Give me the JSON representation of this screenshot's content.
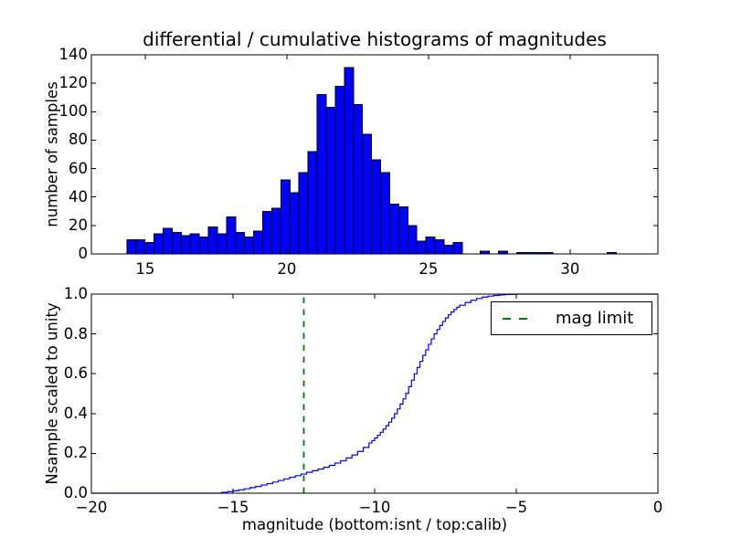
{
  "figure": {
    "background": "#ffffff",
    "text_color": "#000000"
  },
  "chart_data": [
    {
      "id": "top",
      "type": "bar",
      "title": "differential / cumulative histograms of magnitudes",
      "xlabel": "",
      "ylabel": "number of samples",
      "xlim": [
        13.1,
        33.1
      ],
      "ylim": [
        0,
        140
      ],
      "grid": false,
      "xtick_values": [
        15,
        20,
        25,
        30
      ],
      "xtick_labels": [
        "15",
        "20",
        "25",
        "30"
      ],
      "ytick_values": [
        0,
        20,
        40,
        60,
        80,
        100,
        120,
        140
      ],
      "ytick_labels": [
        "0",
        "20",
        "40",
        "60",
        "80",
        "100",
        "120",
        "140"
      ],
      "bar_color": "#0000ff",
      "bar_edge_color": "#000000",
      "bins": {
        "start": 14.35,
        "width": 0.32
      },
      "values": [
        10,
        10,
        8,
        14,
        18,
        15,
        13,
        14,
        12,
        19,
        14,
        26,
        15,
        12,
        16,
        30,
        32,
        52,
        43,
        57,
        72,
        112,
        103,
        118,
        131,
        105,
        84,
        66,
        57,
        35,
        33,
        20,
        9,
        12,
        10,
        6,
        8,
        0,
        0,
        2,
        0,
        2,
        0,
        1,
        1,
        1,
        1,
        0,
        0,
        0,
        0,
        0,
        0,
        1,
        0
      ]
    },
    {
      "id": "bottom",
      "type": "line",
      "line_style": "step",
      "title": "",
      "xlabel": "magnitude (bottom:isnt / top:calib)",
      "ylabel": "Nsample scaled to unity",
      "xlim": [
        -20,
        0
      ],
      "ylim": [
        0.0,
        1.0
      ],
      "grid": false,
      "xtick_values": [
        -20,
        -15,
        -10,
        -5,
        0
      ],
      "xtick_labels": [
        "−20",
        "−15",
        "−10",
        "−5",
        "0"
      ],
      "ytick_values": [
        0.0,
        0.2,
        0.4,
        0.6,
        0.8,
        1.0
      ],
      "ytick_labels": [
        "0.0",
        "0.2",
        "0.4",
        "0.6",
        "0.8",
        "1.0"
      ],
      "line_color": "#0000ff",
      "steps": {
        "x": [
          -15.4,
          -15.2,
          -15.0,
          -14.8,
          -14.6,
          -14.4,
          -14.2,
          -14.0,
          -13.8,
          -13.6,
          -13.4,
          -13.2,
          -13.0,
          -12.8,
          -12.6,
          -12.4,
          -12.2,
          -12.0,
          -11.8,
          -11.6,
          -11.4,
          -11.2,
          -11.0,
          -10.8,
          -10.6,
          -10.4,
          -10.2,
          -10.1,
          -10.0,
          -9.9,
          -9.8,
          -9.7,
          -9.6,
          -9.5,
          -9.4,
          -9.3,
          -9.2,
          -9.1,
          -9.0,
          -8.9,
          -8.8,
          -8.7,
          -8.6,
          -8.5,
          -8.4,
          -8.3,
          -8.2,
          -8.1,
          -8.0,
          -7.9,
          -7.8,
          -7.7,
          -7.6,
          -7.5,
          -7.4,
          -7.3,
          -7.2,
          -7.1,
          -7.0,
          -6.8,
          -6.6,
          -6.4,
          -6.2,
          -6.0,
          -5.8,
          -5.6,
          -5.4,
          -5.2,
          -5.0
        ],
        "y": [
          0.004,
          0.008,
          0.012,
          0.017,
          0.022,
          0.028,
          0.034,
          0.041,
          0.048,
          0.056,
          0.064,
          0.072,
          0.08,
          0.088,
          0.096,
          0.105,
          0.113,
          0.121,
          0.13,
          0.14,
          0.151,
          0.163,
          0.177,
          0.192,
          0.21,
          0.23,
          0.252,
          0.264,
          0.277,
          0.291,
          0.306,
          0.322,
          0.339,
          0.357,
          0.377,
          0.399,
          0.423,
          0.448,
          0.474,
          0.501,
          0.535,
          0.568,
          0.6,
          0.632,
          0.662,
          0.692,
          0.72,
          0.748,
          0.775,
          0.8,
          0.822,
          0.843,
          0.862,
          0.88,
          0.896,
          0.91,
          0.923,
          0.934,
          0.944,
          0.958,
          0.969,
          0.978,
          0.985,
          0.99,
          0.993,
          0.996,
          0.998,
          0.999,
          1.0
        ]
      },
      "vline": {
        "x": -12.5,
        "color": "#008000",
        "style": "dashed",
        "label": "mag limit"
      },
      "legend": {
        "label": "mag limit",
        "position": "upper right"
      }
    }
  ]
}
